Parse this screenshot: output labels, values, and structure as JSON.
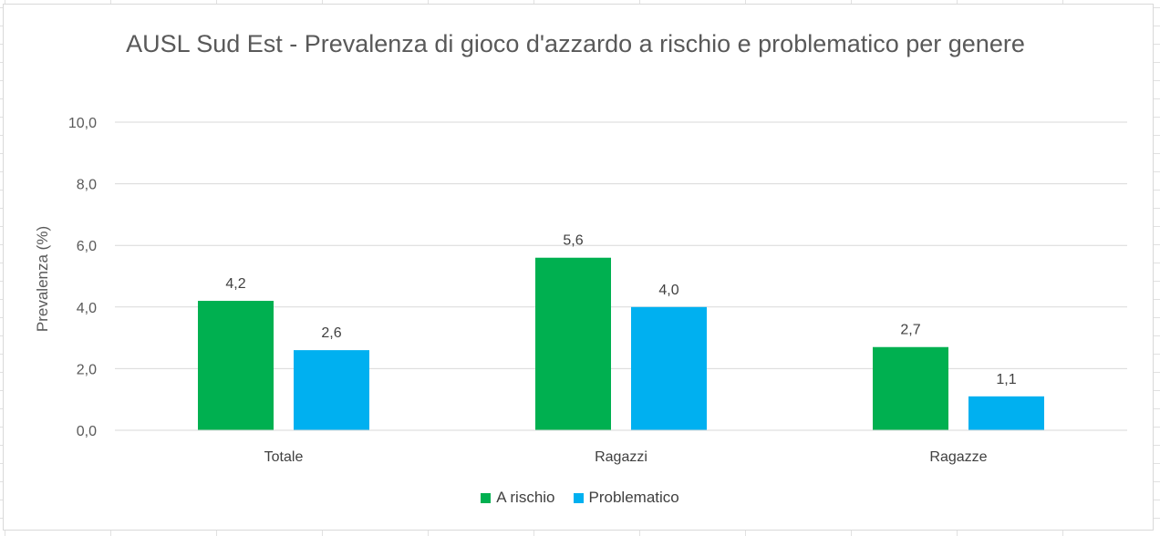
{
  "chart_data": {
    "type": "bar",
    "title": "AUSL Sud Est - Prevalenza di gioco d'azzardo a rischio e problematico per genere",
    "ylabel": "Prevalenza (%)",
    "xlabel": "",
    "categories": [
      "Totale",
      "Ragazzi",
      "Ragazze"
    ],
    "series": [
      {
        "name": "A rischio",
        "color": "#00b050",
        "values": [
          4.2,
          5.6,
          2.7
        ],
        "labels": [
          "4,2",
          "5,6",
          "2,7"
        ]
      },
      {
        "name": "Problematico",
        "color": "#00b0f0",
        "values": [
          2.6,
          4.0,
          1.1
        ],
        "labels": [
          "2,6",
          "4,0",
          "1,1"
        ]
      }
    ],
    "ylim": [
      0,
      10
    ],
    "yticks": [
      0,
      2,
      4,
      6,
      8,
      10
    ],
    "ytick_labels": [
      "0,0",
      "2,0",
      "4,0",
      "6,0",
      "8,0",
      "10,0"
    ],
    "grid": true,
    "legend_position": "bottom"
  }
}
